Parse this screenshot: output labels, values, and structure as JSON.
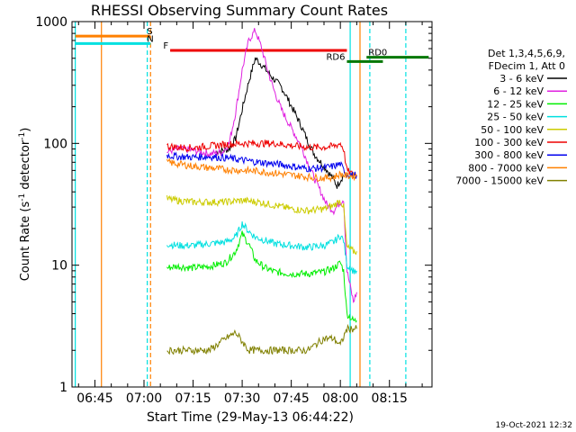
{
  "colors": {
    "background": "#ffffff",
    "axis": "#000000"
  },
  "chart_data": {
    "type": "line",
    "title": "RHESSI Observing Summary Count Rates",
    "xlabel": "Start Time (29-May-13 06:44:22)",
    "ylabel_pre": "Count Rate (s",
    "ylabel_sup1": "-1",
    "ylabel_mid": " detector",
    "ylabel_sup2": "-1",
    "ylabel_post": ")",
    "yscale": "log",
    "ylim": [
      1,
      1000
    ],
    "xlim": [
      "06:38",
      "08:28"
    ],
    "x_ticks": [
      "06:45",
      "07:00",
      "07:15",
      "07:30",
      "07:45",
      "08:00",
      "08:15"
    ],
    "y_ticks": [
      "1",
      "10",
      "100",
      "1000"
    ],
    "timestamp": "19-Oct-2021 12:32",
    "legend": {
      "header1": "Det 1,3,4,5,6,9,",
      "header2": "FDecim 1, Att 0",
      "placement": "right"
    },
    "series": [
      {
        "name": "3 - 6 keV",
        "color": "#000000",
        "points": [
          [
            "07:22",
            85
          ],
          [
            "07:26",
            90
          ],
          [
            "07:28",
            110
          ],
          [
            "07:30",
            190
          ],
          [
            "07:32",
            320
          ],
          [
            "07:34",
            500
          ],
          [
            "07:36",
            440
          ],
          [
            "07:38",
            380
          ],
          [
            "07:40",
            330
          ],
          [
            "07:42",
            290
          ],
          [
            "07:44",
            230
          ],
          [
            "07:46",
            180
          ],
          [
            "07:48",
            140
          ],
          [
            "07:50",
            105
          ],
          [
            "07:52",
            82
          ],
          [
            "07:54",
            70
          ],
          [
            "07:56",
            60
          ],
          [
            "07:58",
            50
          ],
          [
            "07:59",
            45
          ],
          [
            "08:00",
            50
          ],
          [
            "08:01",
            55
          ]
        ]
      },
      {
        "name": "6 - 12 keV",
        "color": "#e020e0",
        "points": [
          [
            "07:07",
            85
          ],
          [
            "07:10",
            90
          ],
          [
            "07:15",
            88
          ],
          [
            "07:20",
            82
          ],
          [
            "07:24",
            85
          ],
          [
            "07:26",
            100
          ],
          [
            "07:28",
            180
          ],
          [
            "07:30",
            400
          ],
          [
            "07:32",
            700
          ],
          [
            "07:34",
            850
          ],
          [
            "07:36",
            600
          ],
          [
            "07:38",
            380
          ],
          [
            "07:40",
            260
          ],
          [
            "07:42",
            190
          ],
          [
            "07:44",
            150
          ],
          [
            "07:46",
            120
          ],
          [
            "07:48",
            95
          ],
          [
            "07:50",
            70
          ],
          [
            "07:52",
            52
          ],
          [
            "07:54",
            40
          ],
          [
            "07:56",
            31
          ],
          [
            "07:58",
            28
          ],
          [
            "08:00",
            33
          ],
          [
            "08:01",
            35
          ],
          [
            "08:02",
            9
          ],
          [
            "08:04",
            5
          ],
          [
            "08:05",
            6
          ]
        ]
      },
      {
        "name": "12 - 25 keV",
        "color": "#00ee00",
        "points": [
          [
            "07:07",
            9.5
          ],
          [
            "07:10",
            9.8
          ],
          [
            "07:15",
            9.5
          ],
          [
            "07:20",
            9.8
          ],
          [
            "07:25",
            10.5
          ],
          [
            "07:28",
            13
          ],
          [
            "07:30",
            18
          ],
          [
            "07:32",
            15
          ],
          [
            "07:34",
            11
          ],
          [
            "07:37",
            9.5
          ],
          [
            "07:40",
            8.8
          ],
          [
            "07:45",
            8.5
          ],
          [
            "07:50",
            8.5
          ],
          [
            "07:55",
            8.8
          ],
          [
            "07:58",
            9.5
          ],
          [
            "08:00",
            10.5
          ],
          [
            "08:01",
            9
          ],
          [
            "08:02",
            4
          ],
          [
            "08:04",
            3.5
          ],
          [
            "08:05",
            3.5
          ]
        ]
      },
      {
        "name": "25 - 50 keV",
        "color": "#00e0e0",
        "points": [
          [
            "07:07",
            15
          ],
          [
            "07:10",
            14.5
          ],
          [
            "07:15",
            14.5
          ],
          [
            "07:20",
            15
          ],
          [
            "07:25",
            15.5
          ],
          [
            "07:28",
            17
          ],
          [
            "07:30",
            22
          ],
          [
            "07:32",
            19
          ],
          [
            "07:34",
            17
          ],
          [
            "07:37",
            16
          ],
          [
            "07:40",
            15
          ],
          [
            "07:45",
            14.5
          ],
          [
            "07:50",
            14
          ],
          [
            "07:55",
            14.5
          ],
          [
            "07:58",
            15.5
          ],
          [
            "08:00",
            17.5
          ],
          [
            "08:01",
            16
          ],
          [
            "08:02",
            10
          ],
          [
            "08:04",
            9
          ],
          [
            "08:05",
            9
          ]
        ]
      },
      {
        "name": "50 - 100 keV",
        "color": "#cccc00",
        "points": [
          [
            "07:07",
            35
          ],
          [
            "07:10",
            34
          ],
          [
            "07:15",
            33
          ],
          [
            "07:20",
            33
          ],
          [
            "07:25",
            33
          ],
          [
            "07:30",
            34
          ],
          [
            "07:35",
            33
          ],
          [
            "07:40",
            31
          ],
          [
            "07:45",
            29
          ],
          [
            "07:50",
            28
          ],
          [
            "07:55",
            29
          ],
          [
            "07:58",
            31
          ],
          [
            "08:00",
            34
          ],
          [
            "08:01",
            30
          ],
          [
            "08:02",
            14
          ],
          [
            "08:04",
            13
          ],
          [
            "08:05",
            13
          ]
        ]
      },
      {
        "name": "100 - 300 keV",
        "color": "#ee0000",
        "points": [
          [
            "07:07",
            95
          ],
          [
            "07:10",
            93
          ],
          [
            "07:15",
            92
          ],
          [
            "07:20",
            95
          ],
          [
            "07:25",
            98
          ],
          [
            "07:30",
            100
          ],
          [
            "07:35",
            100
          ],
          [
            "07:40",
            100
          ],
          [
            "07:45",
            96
          ],
          [
            "07:50",
            93
          ],
          [
            "07:55",
            93
          ],
          [
            "07:58",
            95
          ],
          [
            "08:00",
            100
          ],
          [
            "08:01",
            90
          ],
          [
            "08:02",
            60
          ],
          [
            "08:04",
            55
          ],
          [
            "08:05",
            55
          ]
        ]
      },
      {
        "name": "300 - 800 keV",
        "color": "#0000ee",
        "points": [
          [
            "07:07",
            80
          ],
          [
            "07:10",
            78
          ],
          [
            "07:15",
            77
          ],
          [
            "07:20",
            78
          ],
          [
            "07:25",
            76
          ],
          [
            "07:30",
            73
          ],
          [
            "07:35",
            70
          ],
          [
            "07:40",
            68
          ],
          [
            "07:45",
            65
          ],
          [
            "07:50",
            62
          ],
          [
            "07:55",
            63
          ],
          [
            "07:58",
            65
          ],
          [
            "08:00",
            68
          ],
          [
            "08:01",
            60
          ],
          [
            "08:02",
            56
          ],
          [
            "08:04",
            55
          ],
          [
            "08:05",
            55
          ]
        ]
      },
      {
        "name": "800 - 7000 keV",
        "color": "#ff8000",
        "points": [
          [
            "07:07",
            70
          ],
          [
            "07:10",
            68
          ],
          [
            "07:15",
            65
          ],
          [
            "07:20",
            63
          ],
          [
            "07:25",
            61
          ],
          [
            "07:30",
            60
          ],
          [
            "07:35",
            59
          ],
          [
            "07:40",
            57
          ],
          [
            "07:45",
            55
          ],
          [
            "07:50",
            53
          ],
          [
            "07:55",
            52
          ],
          [
            "07:58",
            53
          ],
          [
            "08:00",
            56
          ],
          [
            "08:01",
            55
          ],
          [
            "08:02",
            54
          ],
          [
            "08:04",
            54
          ],
          [
            "08:05",
            54
          ]
        ]
      },
      {
        "name": "7000 - 15000 keV",
        "color": "#808000",
        "points": [
          [
            "07:07",
            2
          ],
          [
            "07:15",
            2
          ],
          [
            "07:20",
            2
          ],
          [
            "07:25",
            2.5
          ],
          [
            "07:28",
            2.8
          ],
          [
            "07:32",
            2
          ],
          [
            "07:40",
            2
          ],
          [
            "07:50",
            2
          ],
          [
            "07:55",
            2.5
          ],
          [
            "07:58",
            2.5
          ],
          [
            "08:00",
            2.2
          ],
          [
            "08:02",
            3
          ],
          [
            "08:04",
            3
          ],
          [
            "08:05",
            3
          ]
        ]
      }
    ],
    "flags": [
      {
        "label": "S",
        "color": "#ff8000",
        "y": 760,
        "start": "06:39",
        "end": "07:02"
      },
      {
        "label": "N",
        "color": "#00e0e0",
        "y": 660,
        "start": "06:39",
        "end": "07:02"
      },
      {
        "label": "F",
        "color": "#ee0000",
        "y": 580,
        "start": "07:08",
        "end": "08:02"
      },
      {
        "label": "RD0",
        "color": "#007700",
        "y": 510,
        "start": "08:08",
        "end": "08:27"
      },
      {
        "label": "RD6",
        "color": "#007700",
        "y": 470,
        "start": "08:02",
        "end": "08:13"
      }
    ],
    "saa_night_lines": [
      {
        "time": "06:39",
        "color": "#00e0e0",
        "style": "solid"
      },
      {
        "time": "06:47",
        "color": "#ff8000",
        "style": "solid"
      },
      {
        "time": "07:01",
        "color": "#00e0e0",
        "style": "dashed"
      },
      {
        "time": "07:02",
        "color": "#ff8000",
        "style": "dashed"
      },
      {
        "time": "08:03",
        "color": "#00e0e0",
        "style": "solid"
      },
      {
        "time": "08:06",
        "color": "#ff8000",
        "style": "solid"
      },
      {
        "time": "08:09",
        "color": "#00e0e0",
        "style": "dashed"
      },
      {
        "time": "08:20",
        "color": "#00e0e0",
        "style": "dashed"
      }
    ]
  }
}
